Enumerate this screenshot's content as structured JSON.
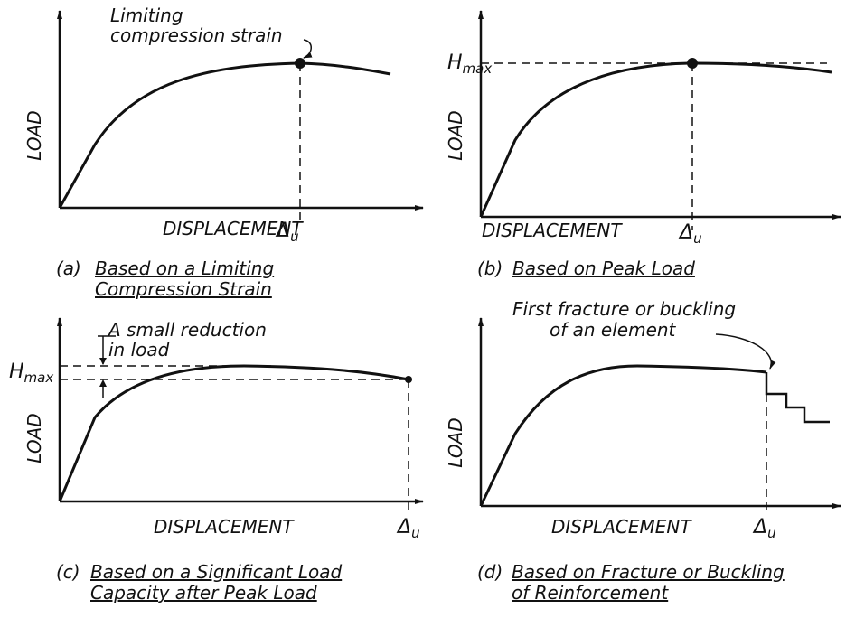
{
  "panels": [
    {
      "y_label": "LOAD",
      "x_label": "DISPLACEMENT",
      "limit": {
        "symbol": "Δ",
        "subscript": "u"
      },
      "annotation": [
        "Limiting",
        "compression strain"
      ],
      "caption": {
        "tag": "(a)",
        "lines": [
          "Based on a Limiting",
          "Compression Strain"
        ]
      }
    },
    {
      "y_label": "LOAD",
      "x_label": "DISPLACEMENT",
      "limit": {
        "symbol": "Δ",
        "subscript": "u"
      },
      "peak": {
        "symbol": "H",
        "subscript": "max"
      },
      "caption": {
        "tag": "(b)",
        "lines": [
          "Based on Peak Load"
        ]
      }
    },
    {
      "y_label": "LOAD",
      "x_label": "DISPLACEMENT",
      "limit": {
        "symbol": "Δ",
        "subscript": "u"
      },
      "peak": {
        "symbol": "H",
        "subscript": "max"
      },
      "annotation": [
        "A small reduction",
        "in load"
      ],
      "caption": {
        "tag": "(c)",
        "lines": [
          "Based on a Significant Load",
          "Capacity after Peak Load"
        ]
      }
    },
    {
      "y_label": "LOAD",
      "x_label": "DISPLACEMENT",
      "limit": {
        "symbol": "Δ",
        "subscript": "u"
      },
      "annotation": [
        "First fracture or buckling",
        "of an element"
      ],
      "caption": {
        "tag": "(d)",
        "lines": [
          "Based on Fracture or Buckling",
          "of Reinforcement"
        ]
      }
    }
  ]
}
